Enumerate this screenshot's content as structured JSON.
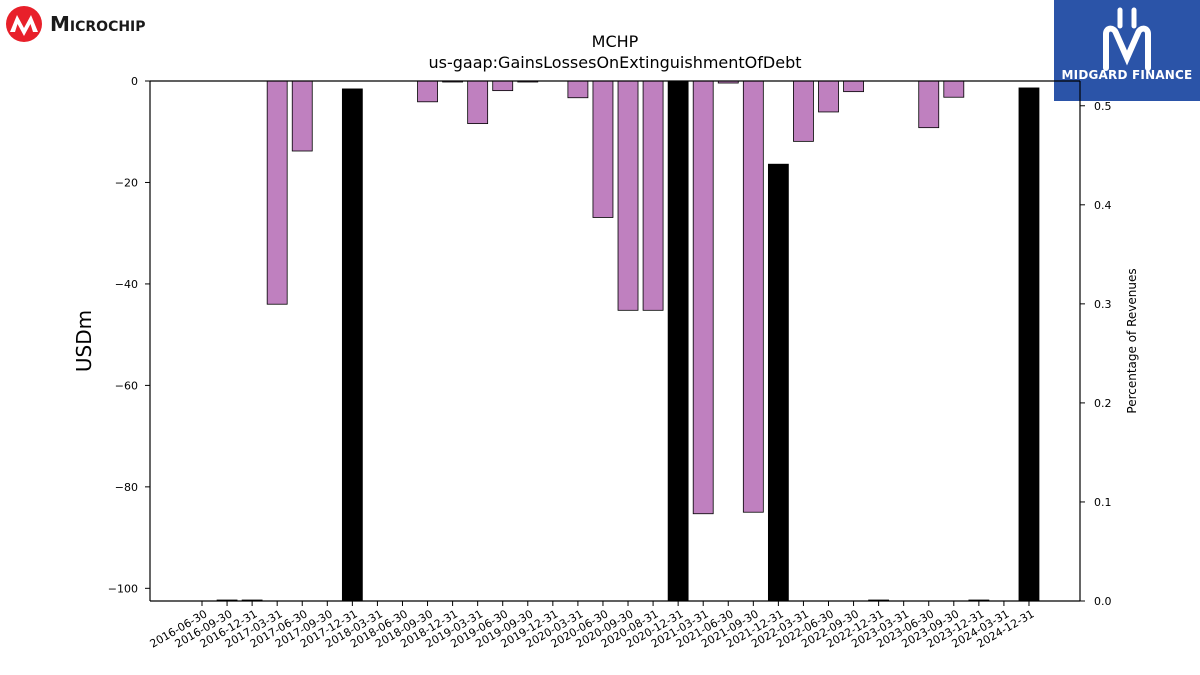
{
  "brand_left": {
    "name": "Microchip",
    "wordmark": "Microchip",
    "color": "#e8202a"
  },
  "brand_right": {
    "name": "MIDGARD FINANCE",
    "bg_color": "#2b54a8",
    "text_color": "#ffffff"
  },
  "chart_data": {
    "type": "bar",
    "title": "MCHP",
    "subtitle": "us-gaap:GainsLossesOnExtinguishmentOfDebt",
    "ylabel": "USDm",
    "y2label": "Percentage of Revenues",
    "ylim": [
      -102.5,
      0
    ],
    "y2lim": [
      0.0,
      0.525
    ],
    "yticks": [
      0,
      -20,
      -40,
      -60,
      -80,
      -100
    ],
    "yticklabels": [
      "0",
      "−20",
      "−40",
      "−60",
      "−80",
      "−100"
    ],
    "y2ticks": [
      0.0,
      0.1,
      0.2,
      0.3,
      0.4,
      0.5
    ],
    "y2ticklabels": [
      "0.0",
      "0.1",
      "0.2",
      "0.3",
      "0.4",
      "0.5"
    ],
    "xticklabels": [
      "2016-06-30",
      "2016-09-30",
      "2016-12-31",
      "2017-03-31",
      "2017-06-30",
      "2017-09-30",
      "2017-12-31",
      "2018-03-31",
      "2018-06-30",
      "2018-09-30",
      "2018-12-31",
      "2019-03-31",
      "2019-06-30",
      "2019-09-30",
      "2019-12-31",
      "2020-03-31",
      "2020-06-30",
      "2020-09-30",
      "2020-08-31",
      "2020-12-31",
      "2021-03-31",
      "2021-06-30",
      "2021-09-30",
      "2021-12-31",
      "2022-03-31",
      "2022-06-30",
      "2022-09-30",
      "2022-12-31",
      "2023-03-31",
      "2023-06-30",
      "2023-09-30",
      "2023-12-31",
      "2024-03-31",
      "2024-12-31"
    ],
    "series": [
      {
        "type": "bar",
        "axis": "left",
        "color": "#bf80bf",
        "edge_color": "#000000",
        "categories": [
          "2017-03-31",
          "2017-06-30",
          "2018-09-30",
          "2018-12-31",
          "2019-03-31",
          "2019-06-30",
          "2019-09-30",
          "2020-03-31",
          "2020-06-30",
          "2020-09-30",
          "2020-08-31",
          "2021-03-31",
          "2021-06-30",
          "2021-09-30",
          "2022-03-31",
          "2022-06-30",
          "2022-09-30",
          "2023-06-30",
          "2023-09-30"
        ],
        "values": [
          -44.0,
          -13.8,
          -4.1,
          -0.2,
          -8.4,
          -1.9,
          -0.2,
          -3.3,
          -26.9,
          -45.2,
          -45.2,
          -85.3,
          -0.4,
          -85.0,
          -11.9,
          -6.1,
          -2.1,
          -9.2,
          -3.2
        ]
      },
      {
        "type": "bar",
        "axis": "right",
        "color": "#000000",
        "edge_color": "#000000",
        "categories": [
          "2016-09-30",
          "2016-12-31",
          "2017-12-31",
          "2020-12-31",
          "2021-12-31",
          "2022-12-31",
          "2023-12-31",
          "2024-12-31"
        ],
        "values": [
          0.001,
          0.001,
          0.517,
          0.525,
          0.441,
          0.001,
          0.001,
          0.518
        ]
      }
    ]
  }
}
